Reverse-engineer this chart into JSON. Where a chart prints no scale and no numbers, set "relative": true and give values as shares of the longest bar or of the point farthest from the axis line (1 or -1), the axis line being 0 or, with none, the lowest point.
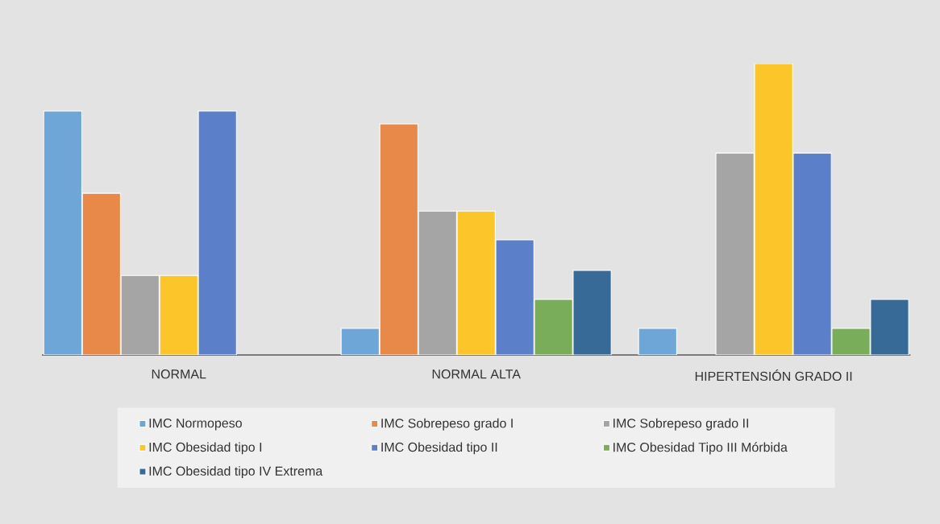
{
  "chart_data": {
    "type": "bar",
    "relative": true,
    "legend": "bottom",
    "categories": [
      "NORMAL",
      "NORMAL ALTA",
      "HIPERTENSIÓN GRADO II"
    ],
    "series": [
      {
        "name": "IMC  Normopeso",
        "color": "#6ea6d8",
        "values": [
          0.837,
          0.091,
          0.091
        ]
      },
      {
        "name": "IMC  Sobrepeso grado I",
        "color": "#e8894a",
        "values": [
          0.555,
          0.793,
          null
        ]
      },
      {
        "name": "IMC  Sobrepeso grado II",
        "color": "#a5a5a5",
        "values": [
          0.273,
          0.494,
          0.693
        ]
      },
      {
        "name": "IMC  Obesidad tipo I",
        "color": "#fcc52a",
        "values": [
          0.273,
          0.494,
          1
        ]
      },
      {
        "name": "IMC  Obesidad tipo II",
        "color": "#5b7fc8",
        "values": [
          0.837,
          0.395,
          0.693
        ]
      },
      {
        "name": "IMC  Obesidad Tipo III Mórbida",
        "color": "#79ad5a",
        "values": [
          null,
          0.191,
          0.091
        ]
      },
      {
        "name": "IMC  Obesidad tipo IV Extrema",
        "color": "#376a96",
        "values": [
          null,
          0.29,
          0.191
        ]
      }
    ]
  }
}
